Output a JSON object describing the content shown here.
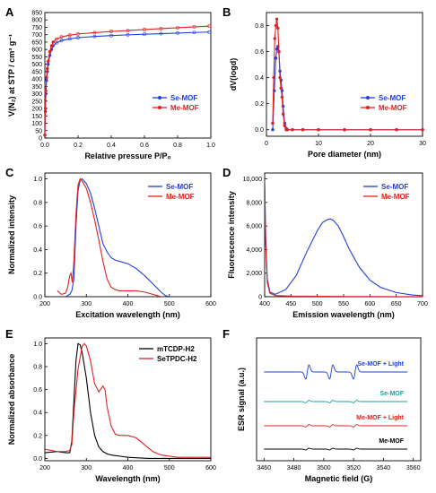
{
  "chart_data": [
    {
      "panel": "A",
      "type": "line",
      "xlabel": "Relative pressure P/P₀",
      "ylabel": "V(N₂) at STP / cm³ g⁻¹",
      "xlim": [
        0.0,
        1.0
      ],
      "ylim": [
        0,
        850
      ],
      "xticks": [
        "0.0",
        "0.2",
        "0.4",
        "0.6",
        "0.8",
        "1.0"
      ],
      "yticks": [
        "0",
        "50",
        "100",
        "150",
        "200",
        "250",
        "300",
        "350",
        "400",
        "450",
        "500",
        "550",
        "600",
        "650",
        "700",
        "750",
        "800",
        "850"
      ],
      "legend_position": "right",
      "series": [
        {
          "name": "Se-MOF",
          "color": "#1f3fe0",
          "x": [
            0.0,
            0.003,
            0.006,
            0.01,
            0.015,
            0.02,
            0.03,
            0.04,
            0.05,
            0.07,
            0.1,
            0.15,
            0.2,
            0.3,
            0.4,
            0.5,
            0.6,
            0.7,
            0.8,
            0.9,
            0.99
          ],
          "y": [
            20,
            180,
            300,
            390,
            450,
            500,
            560,
            600,
            625,
            645,
            660,
            672,
            680,
            688,
            694,
            699,
            703,
            707,
            711,
            715,
            718
          ]
        },
        {
          "name": "Me-MOF",
          "color": "#e02020",
          "x": [
            0.0,
            0.003,
            0.006,
            0.01,
            0.015,
            0.02,
            0.03,
            0.04,
            0.05,
            0.07,
            0.1,
            0.15,
            0.2,
            0.3,
            0.4,
            0.5,
            0.6,
            0.7,
            0.8,
            0.9,
            0.99
          ],
          "y": [
            20,
            200,
            320,
            410,
            470,
            520,
            585,
            625,
            650,
            670,
            685,
            697,
            705,
            714,
            722,
            728,
            735,
            741,
            747,
            753,
            758
          ]
        }
      ]
    },
    {
      "panel": "B",
      "type": "line",
      "xlabel": "Pore diameter (nm)",
      "ylabel": "dV(logd)",
      "xlim": [
        0,
        30
      ],
      "ylim": [
        -0.05,
        0.9
      ],
      "xticks": [
        "0",
        "10",
        "20",
        "30"
      ],
      "yticks": [
        "0.0",
        "0.2",
        "0.4",
        "0.6",
        "0.8"
      ],
      "legend_position": "right",
      "series": [
        {
          "name": "Se-MOF",
          "color": "#1f3fe0",
          "x": [
            1.2,
            1.5,
            1.8,
            2.0,
            2.2,
            2.4,
            2.6,
            2.8,
            3.0,
            3.2,
            3.5,
            3.8,
            4.0,
            5,
            7,
            10,
            15,
            20,
            25,
            30
          ],
          "y": [
            0.0,
            0.3,
            0.55,
            0.62,
            0.64,
            0.6,
            0.45,
            0.38,
            0.3,
            0.18,
            0.05,
            0.01,
            0.0,
            0.0,
            0.0,
            0.0,
            0.0,
            0.0,
            0.0,
            0.0
          ]
        },
        {
          "name": "Me-MOF",
          "color": "#e02020",
          "x": [
            1.2,
            1.4,
            1.6,
            1.8,
            2.0,
            2.2,
            2.4,
            2.6,
            2.8,
            3.0,
            3.2,
            3.5,
            3.8,
            4.0,
            5,
            7,
            10,
            15,
            20,
            25,
            30
          ],
          "y": [
            0.05,
            0.4,
            0.7,
            0.8,
            0.85,
            0.78,
            0.6,
            0.4,
            0.32,
            0.25,
            0.12,
            0.03,
            0.0,
            0.0,
            0.0,
            0.0,
            0.0,
            0.0,
            0.0,
            0.0,
            0.0
          ]
        }
      ]
    },
    {
      "panel": "C",
      "type": "line",
      "xlabel": "Excitation wavelength (nm)",
      "ylabel": "Normalized intensity",
      "xlim": [
        200,
        600
      ],
      "ylim": [
        0,
        1.05
      ],
      "xticks": [
        "200",
        "300",
        "400",
        "500",
        "600"
      ],
      "yticks": [
        "0.0",
        "0.2",
        "0.4",
        "0.6",
        "0.8",
        "1.0"
      ],
      "legend_position": "top-right",
      "series": [
        {
          "name": "Se-MOF",
          "color": "#1f3fe0",
          "x": [
            250,
            260,
            265,
            270,
            275,
            280,
            285,
            290,
            300,
            310,
            320,
            330,
            340,
            350,
            360,
            370,
            380,
            400,
            420,
            440,
            460,
            480,
            490,
            500
          ],
          "y": [
            0.0,
            0.02,
            0.05,
            0.15,
            0.6,
            0.9,
            0.99,
            1.0,
            0.96,
            0.88,
            0.75,
            0.6,
            0.45,
            0.38,
            0.33,
            0.31,
            0.3,
            0.28,
            0.24,
            0.18,
            0.11,
            0.04,
            0.01,
            0.0
          ]
        },
        {
          "name": "Me-MOF",
          "color": "#e02020",
          "x": [
            230,
            240,
            250,
            255,
            260,
            263,
            266,
            270,
            275,
            280,
            285,
            290,
            300,
            310,
            320,
            330,
            340,
            350,
            360,
            370,
            380,
            400,
            420,
            440,
            460,
            470,
            480
          ],
          "y": [
            0.05,
            0.02,
            0.03,
            0.08,
            0.18,
            0.2,
            0.12,
            0.3,
            0.7,
            0.95,
            1.0,
            0.98,
            0.92,
            0.8,
            0.65,
            0.48,
            0.3,
            0.15,
            0.08,
            0.06,
            0.05,
            0.05,
            0.05,
            0.04,
            0.02,
            0.01,
            0.0
          ]
        }
      ]
    },
    {
      "panel": "D",
      "type": "line",
      "xlabel": "Emission wavelength (nm)",
      "ylabel": "Fluorescence intensity",
      "xlim": [
        400,
        700
      ],
      "ylim": [
        0,
        10500
      ],
      "xticks": [
        "400",
        "450",
        "500",
        "550",
        "600",
        "650",
        "700"
      ],
      "yticks": [
        "0",
        "2,000",
        "4,000",
        "6,000",
        "8,000",
        "10,000"
      ],
      "legend_position": "top-right",
      "series": [
        {
          "name": "Se-MOF",
          "color": "#1f3fe0",
          "x": [
            400,
            402,
            405,
            410,
            420,
            440,
            460,
            480,
            500,
            510,
            520,
            525,
            530,
            540,
            550,
            560,
            580,
            600,
            620,
            650,
            680,
            700
          ],
          "y": [
            10000,
            5000,
            1500,
            400,
            200,
            600,
            1800,
            3800,
            5600,
            6300,
            6550,
            6600,
            6500,
            6000,
            5100,
            4100,
            2500,
            1400,
            800,
            350,
            150,
            80
          ]
        },
        {
          "name": "Me-MOF",
          "color": "#e02020",
          "x": [
            400,
            402,
            405,
            410,
            420,
            450,
            500,
            550,
            600,
            650,
            700
          ],
          "y": [
            9800,
            4500,
            1200,
            300,
            100,
            50,
            30,
            20,
            15,
            10,
            10
          ]
        }
      ]
    },
    {
      "panel": "E",
      "type": "line",
      "xlabel": "Wavelength (nm)",
      "ylabel": "Normalized absorbance",
      "xlim": [
        200,
        600
      ],
      "ylim": [
        -0.02,
        1.05
      ],
      "xticks": [
        "200",
        "300",
        "400",
        "500",
        "600"
      ],
      "yticks": [
        "0.0",
        "0.2",
        "0.4",
        "0.6",
        "0.8",
        "1.0"
      ],
      "legend_position": "top-right",
      "series": [
        {
          "name": "mTCDP-H2",
          "color": "#000000",
          "x": [
            200,
            230,
            250,
            260,
            265,
            270,
            275,
            280,
            285,
            290,
            300,
            310,
            320,
            330,
            340,
            350,
            360,
            380,
            400,
            450,
            500,
            600
          ],
          "y": [
            0.05,
            0.06,
            0.05,
            0.05,
            0.15,
            0.5,
            0.85,
            1.0,
            0.99,
            0.92,
            0.7,
            0.4,
            0.2,
            0.1,
            0.06,
            0.04,
            0.03,
            0.02,
            0.01,
            0.0,
            0.0,
            0.0
          ]
        },
        {
          "name": "SeTPDC-H2",
          "color": "#e02020",
          "x": [
            200,
            230,
            250,
            260,
            265,
            270,
            280,
            290,
            295,
            300,
            310,
            320,
            330,
            340,
            345,
            350,
            360,
            370,
            380,
            400,
            420,
            440,
            460,
            480,
            500,
            520,
            600
          ],
          "y": [
            0.08,
            0.06,
            0.06,
            0.07,
            0.12,
            0.4,
            0.78,
            0.98,
            1.0,
            0.98,
            0.85,
            0.65,
            0.58,
            0.63,
            0.6,
            0.45,
            0.28,
            0.21,
            0.2,
            0.2,
            0.18,
            0.12,
            0.06,
            0.03,
            0.02,
            0.01,
            0.01
          ]
        }
      ]
    },
    {
      "panel": "F",
      "type": "line",
      "xlabel": "Magnetic field (G)",
      "ylabel": "ESR signal (a.u.)",
      "xlim": [
        3455,
        3565
      ],
      "xticks": [
        "3460",
        "3480",
        "3500",
        "3520",
        "3540",
        "3560"
      ],
      "series": [
        {
          "name": "Se-MOF + Light",
          "color": "#1f3fe0",
          "offset": 3.0,
          "amplitude": 1.0
        },
        {
          "name": "Se-MOF",
          "color": "#17a0a0",
          "offset": 2.0,
          "amplitude": 0.12
        },
        {
          "name": "Me-MOF + Light",
          "color": "#e02020",
          "offset": 1.0,
          "amplitude": 0.15
        },
        {
          "name": "Me-MOF",
          "color": "#000000",
          "offset": 0.0,
          "amplitude": 0.14
        }
      ],
      "line_centers": [
        3489,
        3505,
        3521
      ],
      "x_range_data": [
        3460,
        3556
      ]
    }
  ]
}
